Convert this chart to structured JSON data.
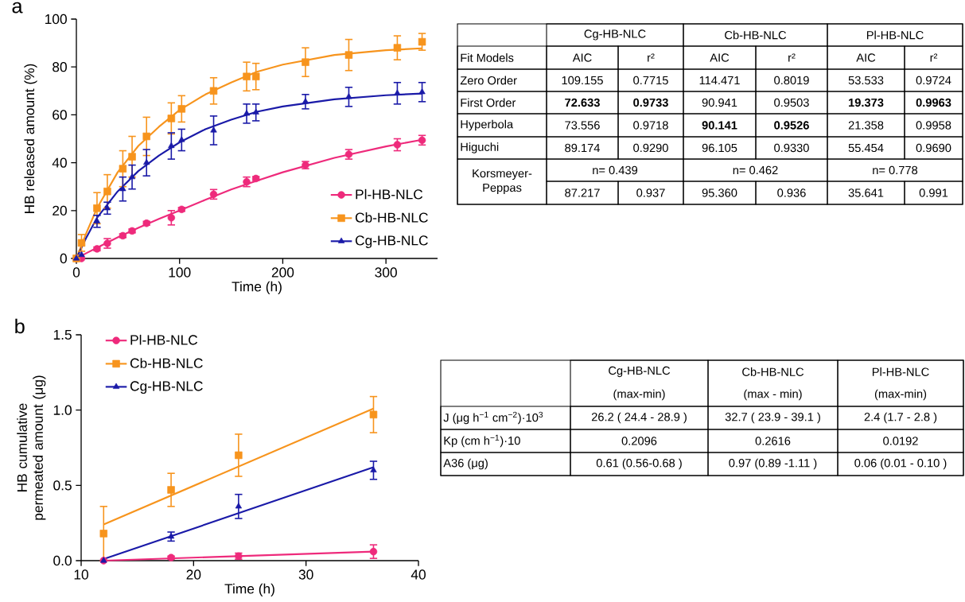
{
  "chart_data": [
    {
      "type": "scatter",
      "title": "a",
      "xlabel": "Time (h)",
      "ylabel": "HB released amount (%)",
      "x": [
        0,
        5,
        20,
        30,
        45,
        54,
        68,
        92,
        102,
        133,
        165,
        174,
        222,
        264,
        311,
        335
      ],
      "xlim": [
        0,
        350
      ],
      "xticks": [
        0,
        100,
        200,
        300
      ],
      "ylim": [
        0,
        100
      ],
      "yticks": [
        0,
        20,
        40,
        60,
        80,
        100
      ],
      "legend": "bottom right",
      "series": [
        {
          "type": "line",
          "color": "#ee2a7b",
          "marker": "none",
          "x": [
            0,
            10,
            20,
            40,
            60,
            80,
            100,
            125,
            150,
            175,
            200,
            250,
            300,
            335
          ],
          "values": [
            0,
            2.3,
            4.5,
            8.8,
            12.8,
            16.5,
            20,
            24.5,
            28.8,
            32.5,
            36,
            42,
            46.8,
            49.6
          ]
        },
        {
          "type": "line",
          "color": "#f7941d",
          "marker": "none",
          "x": [
            0,
            10,
            20,
            40,
            60,
            80,
            100,
            125,
            150,
            175,
            200,
            250,
            300,
            335
          ],
          "values": [
            0,
            11,
            21,
            36,
            47,
            55,
            62,
            68.5,
            73.5,
            78,
            81,
            85,
            87,
            87.8
          ]
        },
        {
          "type": "line",
          "color": "#1a1aa8",
          "marker": "none",
          "x": [
            0,
            10,
            20,
            40,
            60,
            80,
            100,
            125,
            150,
            175,
            200,
            250,
            300,
            335
          ],
          "values": [
            0,
            9,
            17,
            28,
            36.5,
            43,
            48.5,
            54,
            58,
            61.3,
            63.5,
            66.5,
            68.2,
            68.9
          ]
        },
        {
          "name": "Pl-HB-NLC",
          "color": "#ee2a7b",
          "marker": "circle",
          "values": [
            0,
            0,
            4,
            6.3,
            9.5,
            11.5,
            14.7,
            17,
            20.5,
            26.8,
            32,
            33.4,
            39,
            43.5,
            47.5,
            49.4
          ],
          "errors": [
            null,
            null,
            0.8,
            2,
            0.8,
            0.8,
            0.8,
            3,
            0.8,
            2,
            2,
            0.8,
            1.5,
            2,
            2.5,
            2
          ]
        },
        {
          "name": "Cb-HB-NLC",
          "color": "#f7941d",
          "marker": "square",
          "values": [
            0,
            6.5,
            21,
            28,
            37.5,
            42.5,
            51,
            58.5,
            62.5,
            70,
            76,
            76,
            82,
            85,
            88,
            90.5
          ],
          "errors": [
            null,
            3.5,
            6.5,
            7,
            7.5,
            8.5,
            8,
            6.5,
            5.5,
            5.5,
            6,
            5.5,
            6,
            6.5,
            5,
            3.5
          ]
        },
        {
          "name": "Cg-HB-NLC",
          "color": "#1a1aa8",
          "marker": "triangle",
          "values": [
            0,
            1.5,
            15.5,
            21,
            29,
            34,
            40,
            47,
            49.5,
            53.5,
            60.5,
            61,
            65.5,
            67.5,
            69,
            69.5
          ],
          "errors": [
            null,
            null,
            2.5,
            2.5,
            5,
            5,
            5.5,
            5.5,
            4.5,
            6,
            4,
            3.5,
            3,
            4,
            4.5,
            4
          ]
        }
      ]
    },
    {
      "type": "other",
      "annotations": [
        "Cg-HB-NLC",
        "Cb-HB-NLC",
        "Pl-HB-NLC",
        "Fit Models",
        "AIC",
        "r²",
        "AIC",
        "r²",
        "AIC",
        "r²",
        "Zero Order",
        "109.155",
        "0.7715",
        "114.471",
        "0.8019",
        "53.533",
        "0.9724",
        "First Order",
        "**72.633**",
        "**0.9733**",
        "90.941",
        "0.9503",
        "**19.373**",
        "**0.9963**",
        "Hyperbola",
        "73.556",
        "0.9718",
        "**90.141**",
        "**0.9526**",
        "21.358",
        "0.9958",
        "Higuchi",
        "89.174",
        "0.9290",
        "96.105",
        "0.9330",
        "55.454",
        "0.9690",
        "Korsmeyer-Peppas",
        "n= 0.439",
        "n= 0.462",
        "n= 0.778",
        "87.217",
        "0.937",
        "95.360",
        "0.936",
        "35.641",
        "0.991"
      ]
    },
    {
      "type": "scatter",
      "title": "b",
      "xlabel": "Time (h)",
      "ylabel": "HB cumulative permeated amount (μg)",
      "x": [
        12,
        18,
        24,
        36
      ],
      "xlim": [
        10,
        40
      ],
      "xticks": [
        10,
        20,
        30,
        40
      ],
      "ylim": [
        0,
        1.5
      ],
      "yticks": [
        {
          "value": 0,
          "label": "0.0"
        },
        {
          "value": 0.5,
          "label": "0.5"
        },
        {
          "value": 1,
          "label": "1.0"
        },
        {
          "value": 1.5,
          "label": "1.5"
        }
      ],
      "legend": "top left",
      "series": [
        {
          "type": "line",
          "color": "#ee2a7b",
          "marker": "none",
          "x": [
            12,
            36
          ],
          "values": [
            0,
            0.06
          ]
        },
        {
          "type": "line",
          "color": "#f7941d",
          "marker": "none",
          "x": [
            12,
            36
          ],
          "values": [
            0.24,
            1.01
          ]
        },
        {
          "type": "line",
          "color": "#1a1aa8",
          "marker": "none",
          "x": [
            12,
            36
          ],
          "values": [
            0.01,
            0.62
          ]
        },
        {
          "name": "Pl-HB-NLC",
          "color": "#ee2a7b",
          "marker": "circle",
          "values": [
            0,
            0.02,
            0.03,
            0.06
          ],
          "errors": [
            null,
            0.01,
            0.02,
            0.045
          ]
        },
        {
          "name": "Cb-HB-NLC",
          "color": "#f7941d",
          "marker": "square",
          "values": [
            0.18,
            0.47,
            0.7,
            0.97
          ],
          "errors": [
            0.18,
            0.11,
            0.14,
            0.12
          ]
        },
        {
          "name": "Cg-HB-NLC",
          "color": "#1a1aa8",
          "marker": "triangle",
          "values": [
            0,
            0.16,
            0.36,
            0.6
          ],
          "errors": [
            null,
            0.03,
            0.08,
            0.06
          ]
        }
      ]
    },
    {
      "type": "other",
      "annotations": [
        "Cg-HB-NLC",
        "(max-min)",
        "Cb-HB-NLC",
        "(max - min)",
        "Pl-HB-NLC",
        "(max-min)",
        "J (μg h$^{−1}$ cm$^{−2}$)·10$^{3}$",
        "26.2 ( 24.4 - 28.9 )",
        "32.7 ( 23.9 - 39.1 )",
        "2.4 (1.7 - 2.8 )",
        "Kp (cm h$^{−1}$)·10",
        "0.2096",
        "0.2616",
        "0.0192",
        "A36 (μg)",
        "0.61 (0.56-0.68 )",
        "0.97 (0.89 -1.11 )",
        "0.06 (0.01 - 0.10 )"
      ]
    }
  ]
}
